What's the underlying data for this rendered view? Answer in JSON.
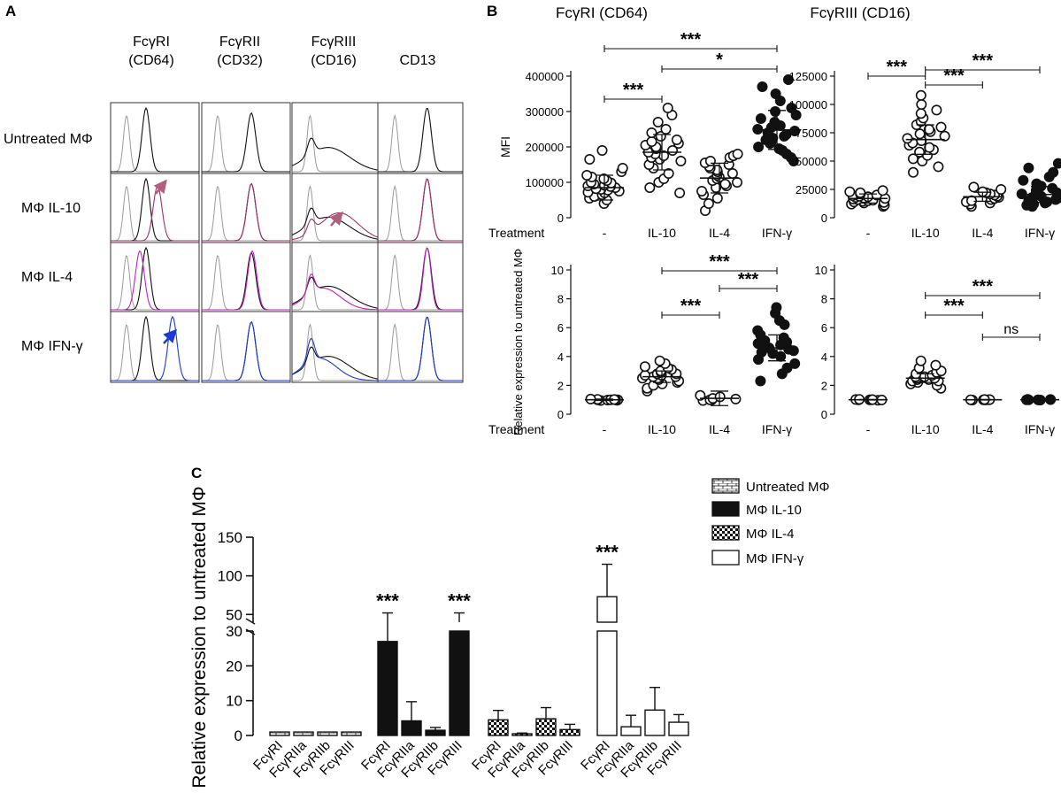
{
  "colors": {
    "ink": "#111111",
    "gray": "#9a9a9a",
    "magenta": "#c020c0",
    "il10": "#a0306a",
    "blue": "#1a3ad6",
    "arrow_il10": "#b0607a",
    "arrow_ifn": "#1a3ad6"
  },
  "panel_letters": {
    "a": "A",
    "b": "B",
    "c": "C"
  },
  "panel_a": {
    "columns": [
      {
        "line1": "FcγRI",
        "line2": "(CD64)"
      },
      {
        "line1": "FcγRII",
        "line2": "(CD32)"
      },
      {
        "line1": "FcγRIII",
        "line2": "(CD16)"
      },
      {
        "line1": "CD13",
        "line2": ""
      }
    ],
    "rows": [
      "Untreated MΦ",
      "MΦ IL-10",
      "MΦ IL-4",
      "MΦ IFN-γ"
    ]
  },
  "chart_data": [
    {
      "type": "scatter",
      "id": "b_cd64_mfi",
      "title": "FcγRI (CD64)",
      "ylabel": "MFI",
      "xlabel": "Treatment",
      "categories": [
        "-",
        "IL-10",
        "IL-4",
        "IFN-γ"
      ],
      "yticks": [
        0,
        100000,
        200000,
        300000,
        400000
      ],
      "ylim": [
        0,
        400000
      ],
      "points": [
        [
          40000,
          50000,
          55000,
          60000,
          65000,
          70000,
          72000,
          75000,
          78000,
          80000,
          82000,
          85000,
          88000,
          90000,
          92000,
          95000,
          98000,
          100000,
          105000,
          110000,
          115000,
          120000,
          130000,
          140000,
          165000,
          190000
        ],
        [
          70000,
          85000,
          100000,
          110000,
          125000,
          140000,
          150000,
          160000,
          165000,
          170000,
          175000,
          180000,
          185000,
          190000,
          195000,
          200000,
          205000,
          210000,
          215000,
          220000,
          230000,
          240000,
          250000,
          270000,
          290000,
          310000
        ],
        [
          20000,
          40000,
          55000,
          65000,
          75000,
          85000,
          90000,
          95000,
          100000,
          105000,
          110000,
          115000,
          120000,
          125000,
          130000,
          135000,
          140000,
          145000,
          150000,
          155000,
          160000,
          170000,
          175000,
          180000
        ],
        [
          160000,
          170000,
          180000,
          190000,
          195000,
          200000,
          210000,
          215000,
          220000,
          225000,
          230000,
          235000,
          240000,
          245000,
          250000,
          255000,
          260000,
          270000,
          280000,
          290000,
          300000,
          310000,
          330000,
          350000,
          370000,
          390000
        ]
      ],
      "mean": [
        85000,
        185000,
        112000,
        248000
      ],
      "sd": [
        35000,
        50000,
        42000,
        55000
      ],
      "hollow": [
        true,
        true,
        true,
        false
      ],
      "significance": [
        {
          "from": 0,
          "to": 3,
          "label": "***"
        },
        {
          "from": 1,
          "to": 3,
          "label": "*"
        },
        {
          "from": 0,
          "to": 1,
          "label": "***"
        }
      ]
    },
    {
      "type": "scatter",
      "id": "b_cd16_mfi",
      "title": "FcγRIII (CD16)",
      "ylabel": "",
      "xlabel": "",
      "categories": [
        "-",
        "IL-10",
        "IL-4",
        "IFN-γ"
      ],
      "yticks": [
        0,
        25000,
        50000,
        75000,
        100000,
        125000
      ],
      "ylim": [
        0,
        125000
      ],
      "points": [
        [
          10000,
          11000,
          12000,
          13000,
          13500,
          14000,
          14500,
          15000,
          15500,
          16000,
          16500,
          17000,
          17500,
          18000,
          18500,
          19000,
          19500,
          20000,
          21000,
          22000,
          23000,
          24000
        ],
        [
          40000,
          45000,
          50000,
          52000,
          55000,
          58000,
          60000,
          62000,
          64000,
          66000,
          68000,
          70000,
          72000,
          74000,
          76000,
          78000,
          80000,
          82000,
          85000,
          88000,
          92000,
          95000,
          100000,
          108000
        ],
        [
          10000,
          12000,
          13000,
          14000,
          15000,
          16000,
          17000,
          18000,
          19000,
          20000,
          21000,
          22000,
          23000,
          25000,
          27000
        ],
        [
          10000,
          11000,
          12000,
          13000,
          14000,
          15000,
          16000,
          17000,
          18000,
          19000,
          20000,
          21000,
          22000,
          24000,
          26000,
          28000,
          30000,
          33000,
          36000,
          40000,
          44000,
          48000
        ]
      ],
      "mean": [
        17000,
        69000,
        18500,
        20500
      ],
      "sd": [
        4000,
        13000,
        4000,
        7000
      ],
      "hollow": [
        true,
        true,
        true,
        false
      ],
      "significance": [
        {
          "from": 0,
          "to": 1,
          "label": "***"
        },
        {
          "from": 1,
          "to": 3,
          "label": "***"
        },
        {
          "from": 1,
          "to": 2,
          "label": "***"
        }
      ]
    },
    {
      "type": "scatter",
      "id": "b_cd64_rel",
      "title": "",
      "ylabel": "Relative expression to untreated MΦ",
      "xlabel": "Treatment",
      "categories": [
        "-",
        "IL-10",
        "IL-4",
        "IFN-γ"
      ],
      "yticks": [
        0,
        2,
        4,
        6,
        8,
        10
      ],
      "ylim": [
        0,
        10
      ],
      "points": [
        [
          0.95,
          0.97,
          0.98,
          1,
          1,
          1,
          1,
          1.02,
          1.03,
          1.05
        ],
        [
          1.6,
          1.8,
          2,
          2.1,
          2.2,
          2.3,
          2.4,
          2.5,
          2.5,
          2.6,
          2.6,
          2.7,
          2.7,
          2.8,
          2.8,
          2.9,
          3,
          3.1,
          3.2,
          3.3,
          3.5,
          3.7
        ],
        [
          0.95,
          1,
          1,
          1.05,
          1.1,
          1.2,
          1.3
        ],
        [
          2.3,
          2.8,
          3.2,
          3.5,
          3.8,
          4,
          4.2,
          4.3,
          4.4,
          4.5,
          4.6,
          4.7,
          4.8,
          4.9,
          5,
          5.1,
          5.3,
          5.5,
          5.8,
          6.2,
          6.5,
          7,
          7.4
        ]
      ],
      "mean": [
        1.0,
        2.6,
        1.1,
        4.6
      ],
      "sd": [
        0.05,
        0.4,
        0.5,
        0.9
      ],
      "hollow": [
        true,
        true,
        true,
        false
      ],
      "significance": [
        {
          "from": 1,
          "to": 3,
          "label": "***"
        },
        {
          "from": 2,
          "to": 3,
          "label": "***"
        },
        {
          "from": 1,
          "to": 2,
          "label": "***"
        }
      ]
    },
    {
      "type": "scatter",
      "id": "b_cd16_rel",
      "title": "",
      "ylabel": "",
      "xlabel": "",
      "categories": [
        "-",
        "IL-10",
        "IL-4",
        "IFN-γ"
      ],
      "yticks": [
        0,
        2,
        4,
        6,
        8,
        10
      ],
      "ylim": [
        0,
        10
      ],
      "points": [
        [
          0.97,
          0.99,
          1,
          1,
          1,
          1.01,
          1.02,
          1.03
        ],
        [
          1.8,
          2,
          2.1,
          2.2,
          2.3,
          2.3,
          2.4,
          2.4,
          2.5,
          2.5,
          2.6,
          2.6,
          2.7,
          2.8,
          2.9,
          3,
          3.2,
          3.4,
          3.7
        ],
        [
          0.98,
          0.99,
          1,
          1,
          1,
          1.01,
          1.02
        ],
        [
          0.98,
          0.99,
          1,
          1,
          1,
          1.01,
          1.02,
          1.03
        ]
      ],
      "mean": [
        1.0,
        2.5,
        1.0,
        1.0
      ],
      "sd": [
        0.02,
        0.3,
        0.02,
        0.02
      ],
      "hollow": [
        true,
        true,
        true,
        false
      ],
      "significance": [
        {
          "from": 1,
          "to": 3,
          "label": "***"
        },
        {
          "from": 1,
          "to": 2,
          "label": "***"
        },
        {
          "from": 2,
          "to": 3,
          "label": "ns"
        }
      ]
    },
    {
      "type": "bar",
      "id": "c_bars",
      "ylabel": "Relative expression to untreated MΦ",
      "categories": [
        "FcγRI",
        "FcγRIIa",
        "FcγRIIb",
        "FcγRIII"
      ],
      "y_axis_break": {
        "lower_ticks": [
          0,
          10,
          20,
          30
        ],
        "upper_ticks": [
          50,
          100,
          150
        ]
      },
      "series": [
        {
          "name": "Untreated MΦ",
          "pattern": "brick",
          "values": [
            1,
            1,
            1,
            1
          ],
          "errors": [
            0,
            0,
            0,
            0
          ],
          "sig": [
            "",
            "",
            "",
            ""
          ]
        },
        {
          "name": "MΦ IL-10",
          "pattern": "solid",
          "values": [
            27,
            4.2,
            1.5,
            40
          ],
          "errors": [
            25,
            5.5,
            0.8,
            12
          ],
          "sig": [
            "***",
            "",
            "",
            "***"
          ]
        },
        {
          "name": "MΦ IL-4",
          "pattern": "checker",
          "values": [
            4.5,
            0.5,
            4.8,
            1.7
          ],
          "errors": [
            2.7,
            0.2,
            3.2,
            1.5
          ],
          "sig": [
            "",
            "",
            "",
            ""
          ]
        },
        {
          "name": "MΦ IFN-γ",
          "pattern": "open",
          "values": [
            73,
            2.5,
            7.3,
            3.8
          ],
          "errors": [
            42,
            3.3,
            6.5,
            2.2
          ],
          "sig": [
            "***",
            "",
            "",
            ""
          ]
        }
      ]
    }
  ]
}
